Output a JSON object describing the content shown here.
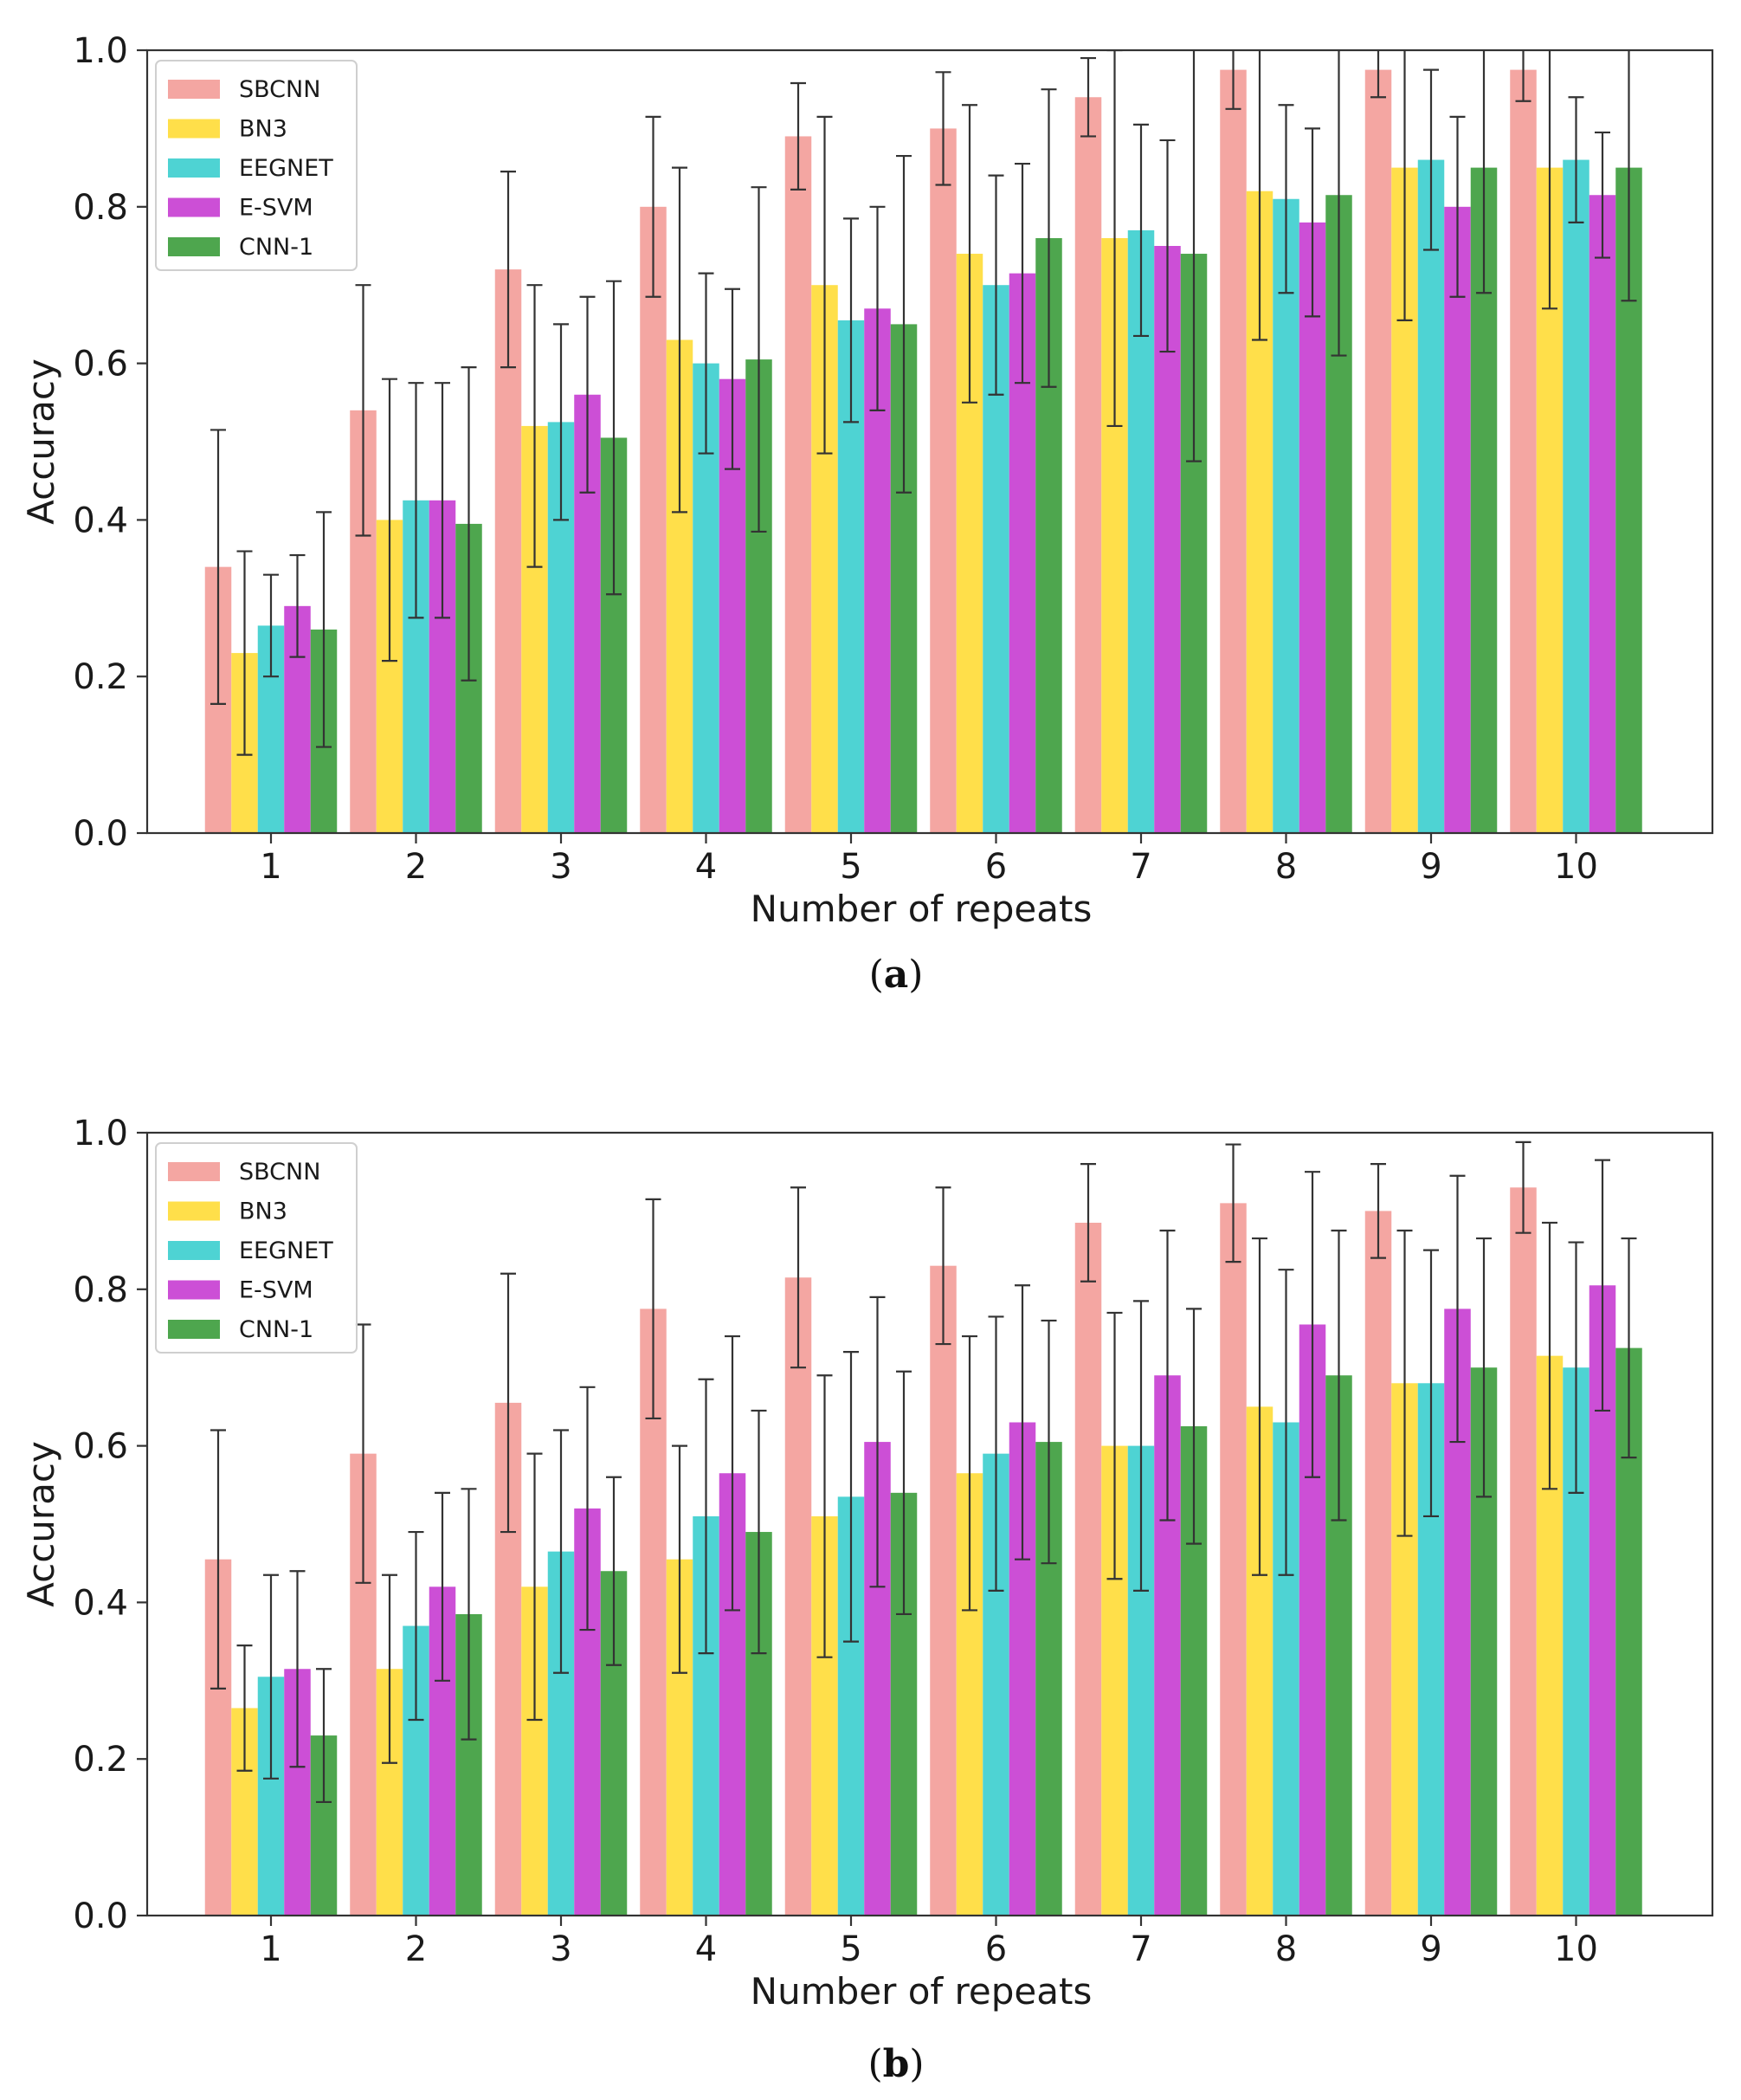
{
  "series_colors": {
    "SBCNN": "#f4a6a2",
    "BN3": "#ffdf4a",
    "EEGNET": "#4ed3d3",
    "E-SVM": "#cc4fd6",
    "CNN-1": "#4ea64e"
  },
  "chart_data": [
    {
      "type": "bar",
      "panel": "a",
      "caption": {
        "open": "(",
        "letter": "a",
        "close": ")"
      },
      "xlabel": "Number of repeats",
      "ylabel": "Accuracy",
      "ylim": [
        0,
        1.0
      ],
      "yticks": [
        "0.0",
        "0.2",
        "0.4",
        "0.6",
        "0.8",
        "1.0"
      ],
      "categories": [
        "1",
        "2",
        "3",
        "4",
        "5",
        "6",
        "7",
        "8",
        "9",
        "10"
      ],
      "legend_position": "top-left",
      "series": [
        {
          "name": "SBCNN",
          "values": [
            0.34,
            0.54,
            0.72,
            0.8,
            0.89,
            0.9,
            0.94,
            0.975,
            0.975,
            0.975
          ],
          "errors": [
            0.175,
            0.16,
            0.125,
            0.115,
            0.068,
            0.072,
            0.05,
            0.05,
            0.035,
            0.04
          ]
        },
        {
          "name": "BN3",
          "values": [
            0.23,
            0.4,
            0.52,
            0.63,
            0.7,
            0.74,
            0.76,
            0.82,
            0.85,
            0.85
          ],
          "errors": [
            0.13,
            0.18,
            0.18,
            0.22,
            0.215,
            0.19,
            0.24,
            0.19,
            0.195,
            0.18
          ]
        },
        {
          "name": "EEGNET",
          "values": [
            0.265,
            0.425,
            0.525,
            0.6,
            0.655,
            0.7,
            0.77,
            0.81,
            0.86,
            0.86
          ],
          "errors": [
            0.065,
            0.15,
            0.125,
            0.115,
            0.13,
            0.14,
            0.135,
            0.12,
            0.115,
            0.08
          ]
        },
        {
          "name": "E-SVM",
          "values": [
            0.29,
            0.425,
            0.56,
            0.58,
            0.67,
            0.715,
            0.75,
            0.78,
            0.8,
            0.815
          ],
          "errors": [
            0.065,
            0.15,
            0.125,
            0.115,
            0.13,
            0.14,
            0.135,
            0.12,
            0.115,
            0.08
          ]
        },
        {
          "name": "CNN-1",
          "values": [
            0.26,
            0.395,
            0.505,
            0.605,
            0.65,
            0.76,
            0.74,
            0.815,
            0.85,
            0.85
          ],
          "errors": [
            0.15,
            0.2,
            0.2,
            0.22,
            0.215,
            0.19,
            0.265,
            0.205,
            0.16,
            0.17
          ]
        }
      ]
    },
    {
      "type": "bar",
      "panel": "b",
      "caption": {
        "open": "(",
        "letter": "b",
        "close": ")"
      },
      "xlabel": "Number of repeats",
      "ylabel": "Accuracy",
      "ylim": [
        0,
        1.0
      ],
      "yticks": [
        "0.0",
        "0.2",
        "0.4",
        "0.6",
        "0.8",
        "1.0"
      ],
      "categories": [
        "1",
        "2",
        "3",
        "4",
        "5",
        "6",
        "7",
        "8",
        "9",
        "10"
      ],
      "legend_position": "top-left",
      "series": [
        {
          "name": "SBCNN",
          "values": [
            0.455,
            0.59,
            0.655,
            0.775,
            0.815,
            0.83,
            0.885,
            0.91,
            0.9,
            0.93
          ],
          "errors": [
            0.165,
            0.165,
            0.165,
            0.14,
            0.115,
            0.1,
            0.075,
            0.075,
            0.06,
            0.058
          ]
        },
        {
          "name": "BN3",
          "values": [
            0.265,
            0.315,
            0.42,
            0.455,
            0.51,
            0.565,
            0.6,
            0.65,
            0.68,
            0.715
          ],
          "errors": [
            0.08,
            0.12,
            0.17,
            0.145,
            0.18,
            0.175,
            0.17,
            0.215,
            0.195,
            0.17
          ]
        },
        {
          "name": "EEGNET",
          "values": [
            0.305,
            0.37,
            0.465,
            0.51,
            0.535,
            0.59,
            0.6,
            0.63,
            0.68,
            0.7
          ],
          "errors": [
            0.13,
            0.12,
            0.155,
            0.175,
            0.185,
            0.175,
            0.185,
            0.195,
            0.17,
            0.16
          ]
        },
        {
          "name": "E-SVM",
          "values": [
            0.315,
            0.42,
            0.52,
            0.565,
            0.605,
            0.63,
            0.69,
            0.755,
            0.775,
            0.805
          ],
          "errors": [
            0.125,
            0.12,
            0.155,
            0.175,
            0.185,
            0.175,
            0.185,
            0.195,
            0.17,
            0.16
          ]
        },
        {
          "name": "CNN-1",
          "values": [
            0.23,
            0.385,
            0.44,
            0.49,
            0.54,
            0.605,
            0.625,
            0.69,
            0.7,
            0.725
          ],
          "errors": [
            0.085,
            0.16,
            0.12,
            0.155,
            0.155,
            0.155,
            0.15,
            0.185,
            0.165,
            0.14
          ]
        }
      ]
    }
  ]
}
